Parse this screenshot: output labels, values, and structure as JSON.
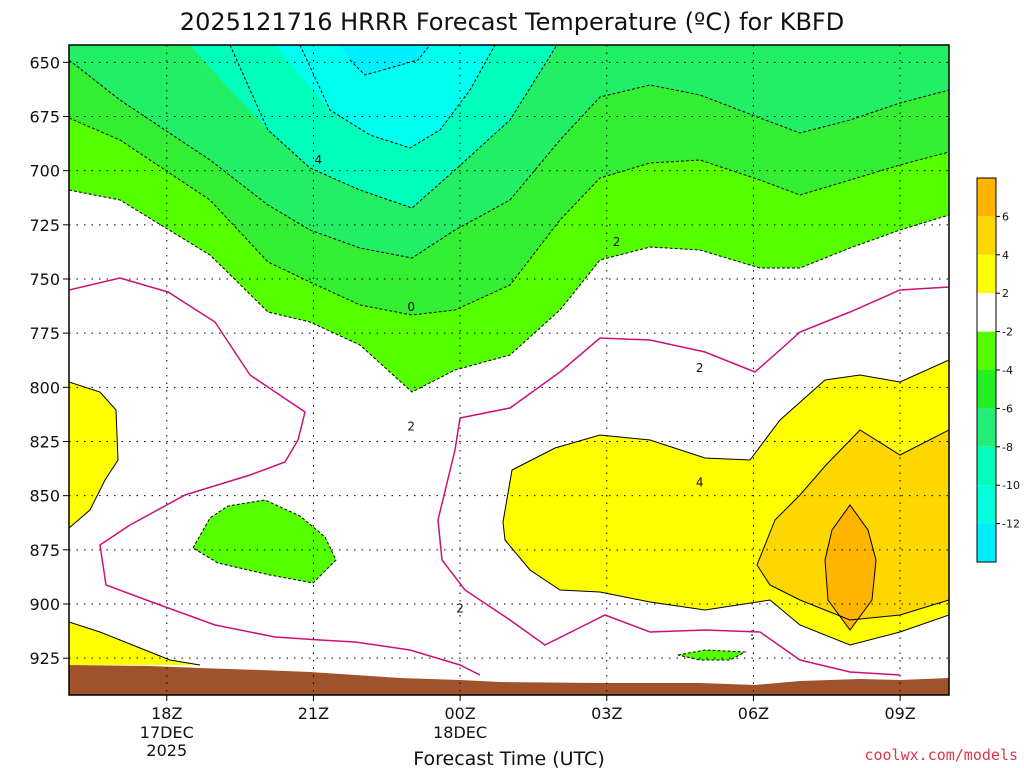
{
  "chart_data": {
    "type": "contour",
    "title": "2025121716 HRRR Forecast Temperature (ºC) for KBFD",
    "xlabel": "Forecast Time (UTC)",
    "ylabel": "",
    "credit": "coolwx.com/models",
    "y_ticks": [
      "650",
      "675",
      "700",
      "725",
      "750",
      "775",
      "800",
      "825",
      "850",
      "875",
      "900",
      "925"
    ],
    "x_ticks": [
      {
        "label": "18Z",
        "sub1": "17DEC",
        "sub2": "2025"
      },
      {
        "label": "21Z",
        "sub1": "",
        "sub2": ""
      },
      {
        "label": "00Z",
        "sub1": "18DEC",
        "sub2": ""
      },
      {
        "label": "03Z",
        "sub1": "",
        "sub2": ""
      },
      {
        "label": "06Z",
        "sub1": "",
        "sub2": ""
      },
      {
        "label": "09Z",
        "sub1": "",
        "sub2": ""
      }
    ],
    "x_range_hours": [
      16,
      34
    ],
    "y_range_hPa": [
      642,
      942
    ],
    "grid": true,
    "colorbar": {
      "labels": [
        "6",
        "4",
        "2",
        "-2",
        "-4",
        "-6",
        "-8",
        "-10",
        "-12"
      ],
      "colors": [
        "#ffb400",
        "#ffd700",
        "#ffff00",
        "#ffffff",
        "#55ff00",
        "#22ee22",
        "#22ee77",
        "#00ffbb",
        "#00ffdd",
        "#00eeff"
      ]
    },
    "contour_labels": [
      {
        "text": "4",
        "hour": 21.1,
        "hPa": 695
      },
      {
        "text": "2",
        "hour": 27.2,
        "hPa": 733
      },
      {
        "text": "0",
        "hour": 23.0,
        "hPa": 763
      },
      {
        "text": "2",
        "hour": 23.0,
        "hPa": 818
      },
      {
        "text": "2",
        "hour": 24.0,
        "hPa": 902
      },
      {
        "text": "2",
        "hour": 28.9,
        "hPa": 791
      },
      {
        "text": "4",
        "hour": 28.9,
        "hPa": 844
      }
    ],
    "fill_colors": {
      "cold10": "#00ffee",
      "cold8": "#00ffbb",
      "cold6": "#22ee66",
      "cold4": "#33ee33",
      "cold2": "#55ff00",
      "warm2": "#ffff00",
      "warm4": "#ffd700",
      "warm6": "#ffb400",
      "terrain": "#a0522d",
      "zero_line": "#cc1177"
    }
  }
}
